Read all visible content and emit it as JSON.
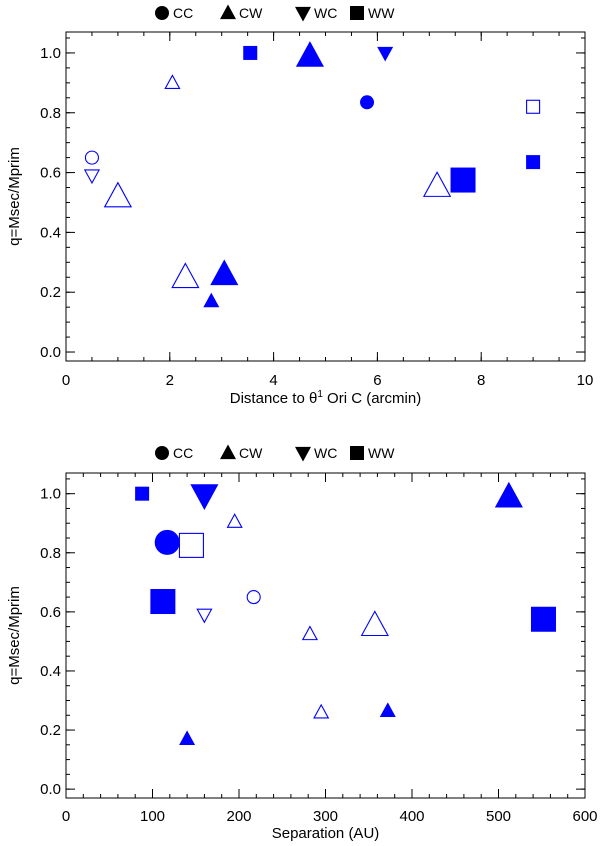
{
  "legend": [
    {
      "key": "cc",
      "label": "CC",
      "marker": "circle"
    },
    {
      "key": "cw",
      "label": "CW",
      "marker": "triangle-up"
    },
    {
      "key": "wc",
      "label": "WC",
      "marker": "triangle-down"
    },
    {
      "key": "ww",
      "label": "WW",
      "marker": "square"
    }
  ],
  "colors": {
    "marker": "#0000ff",
    "axis": "#000000"
  },
  "chart_data": [
    {
      "type": "scatter",
      "xlabel_prefix": "Distance to ",
      "xlabel_symbol": "θ",
      "xlabel_sup": "1",
      "xlabel_suffix": " Ori C (arcmin)",
      "ylabel": "q=Msec/Mprim",
      "xlim": [
        0,
        10
      ],
      "ylim": [
        -0.03,
        1.07
      ],
      "xticks": [
        0,
        2,
        4,
        6,
        8,
        10
      ],
      "xtick_labels": [
        "0",
        "2",
        "4",
        "6",
        "8",
        "10"
      ],
      "yticks": [
        0.0,
        0.2,
        0.4,
        0.6,
        0.8,
        1.0
      ],
      "ytick_labels": [
        "0.0",
        "0.2",
        "0.4",
        "0.6",
        "0.8",
        "1.0"
      ],
      "x_minor_step": 0.5,
      "y_minor_step": 0.05,
      "grid": false,
      "legend_position": "top",
      "points": [
        {
          "x": 3.55,
          "y": 1.0,
          "marker": "square",
          "filled": true,
          "size": "small"
        },
        {
          "x": 4.7,
          "y": 0.99,
          "marker": "triangle-up",
          "filled": true,
          "size": "large"
        },
        {
          "x": 6.15,
          "y": 1.0,
          "marker": "triangle-down",
          "filled": true,
          "size": "small"
        },
        {
          "x": 2.05,
          "y": 0.9,
          "marker": "triangle-up",
          "filled": false,
          "size": "small"
        },
        {
          "x": 5.8,
          "y": 0.835,
          "marker": "circle",
          "filled": true,
          "size": "small"
        },
        {
          "x": 9.0,
          "y": 0.82,
          "marker": "square",
          "filled": false,
          "size": "small"
        },
        {
          "x": 0.5,
          "y": 0.65,
          "marker": "circle",
          "filled": false,
          "size": "small"
        },
        {
          "x": 9.0,
          "y": 0.635,
          "marker": "square",
          "filled": true,
          "size": "small"
        },
        {
          "x": 0.5,
          "y": 0.59,
          "marker": "triangle-down",
          "filled": false,
          "size": "small"
        },
        {
          "x": 7.65,
          "y": 0.575,
          "marker": "square",
          "filled": true,
          "size": "large"
        },
        {
          "x": 7.15,
          "y": 0.555,
          "marker": "triangle-up",
          "filled": false,
          "size": "large"
        },
        {
          "x": 1.0,
          "y": 0.52,
          "marker": "triangle-up",
          "filled": false,
          "size": "large"
        },
        {
          "x": 2.3,
          "y": 0.25,
          "marker": "triangle-up",
          "filled": false,
          "size": "large"
        },
        {
          "x": 3.05,
          "y": 0.26,
          "marker": "triangle-up",
          "filled": true,
          "size": "large"
        },
        {
          "x": 2.8,
          "y": 0.17,
          "marker": "triangle-up",
          "filled": true,
          "size": "small"
        }
      ]
    },
    {
      "type": "scatter",
      "xlabel": "Separation (AU)",
      "ylabel": "q=Msec/Mprim",
      "xlim": [
        0,
        600
      ],
      "ylim": [
        -0.03,
        1.07
      ],
      "xticks": [
        0,
        100,
        200,
        300,
        400,
        500,
        600
      ],
      "xtick_labels": [
        "0",
        "100",
        "200",
        "300",
        "400",
        "500",
        "600"
      ],
      "yticks": [
        0.0,
        0.2,
        0.4,
        0.6,
        0.8,
        1.0
      ],
      "ytick_labels": [
        "0.0",
        "0.2",
        "0.4",
        "0.6",
        "0.8",
        "1.0"
      ],
      "x_minor_step": 20,
      "y_minor_step": 0.05,
      "grid": false,
      "legend_position": "top",
      "points": [
        {
          "x": 88,
          "y": 1.0,
          "marker": "square",
          "filled": true,
          "size": "small"
        },
        {
          "x": 160,
          "y": 0.995,
          "marker": "triangle-down",
          "filled": true,
          "size": "large"
        },
        {
          "x": 512,
          "y": 0.99,
          "marker": "triangle-up",
          "filled": true,
          "size": "large"
        },
        {
          "x": 195,
          "y": 0.905,
          "marker": "triangle-up",
          "filled": false,
          "size": "small"
        },
        {
          "x": 117,
          "y": 0.835,
          "marker": "circle",
          "filled": true,
          "size": "large"
        },
        {
          "x": 145,
          "y": 0.825,
          "marker": "square",
          "filled": false,
          "size": "large"
        },
        {
          "x": 217,
          "y": 0.65,
          "marker": "circle",
          "filled": false,
          "size": "small"
        },
        {
          "x": 112,
          "y": 0.635,
          "marker": "square",
          "filled": true,
          "size": "large"
        },
        {
          "x": 160,
          "y": 0.59,
          "marker": "triangle-down",
          "filled": false,
          "size": "small"
        },
        {
          "x": 552,
          "y": 0.575,
          "marker": "square",
          "filled": true,
          "size": "large"
        },
        {
          "x": 357,
          "y": 0.555,
          "marker": "triangle-up",
          "filled": false,
          "size": "large"
        },
        {
          "x": 282,
          "y": 0.525,
          "marker": "triangle-up",
          "filled": false,
          "size": "small"
        },
        {
          "x": 295,
          "y": 0.26,
          "marker": "triangle-up",
          "filled": false,
          "size": "small"
        },
        {
          "x": 372,
          "y": 0.265,
          "marker": "triangle-up",
          "filled": true,
          "size": "small"
        },
        {
          "x": 140,
          "y": 0.17,
          "marker": "triangle-up",
          "filled": true,
          "size": "small"
        }
      ]
    }
  ]
}
